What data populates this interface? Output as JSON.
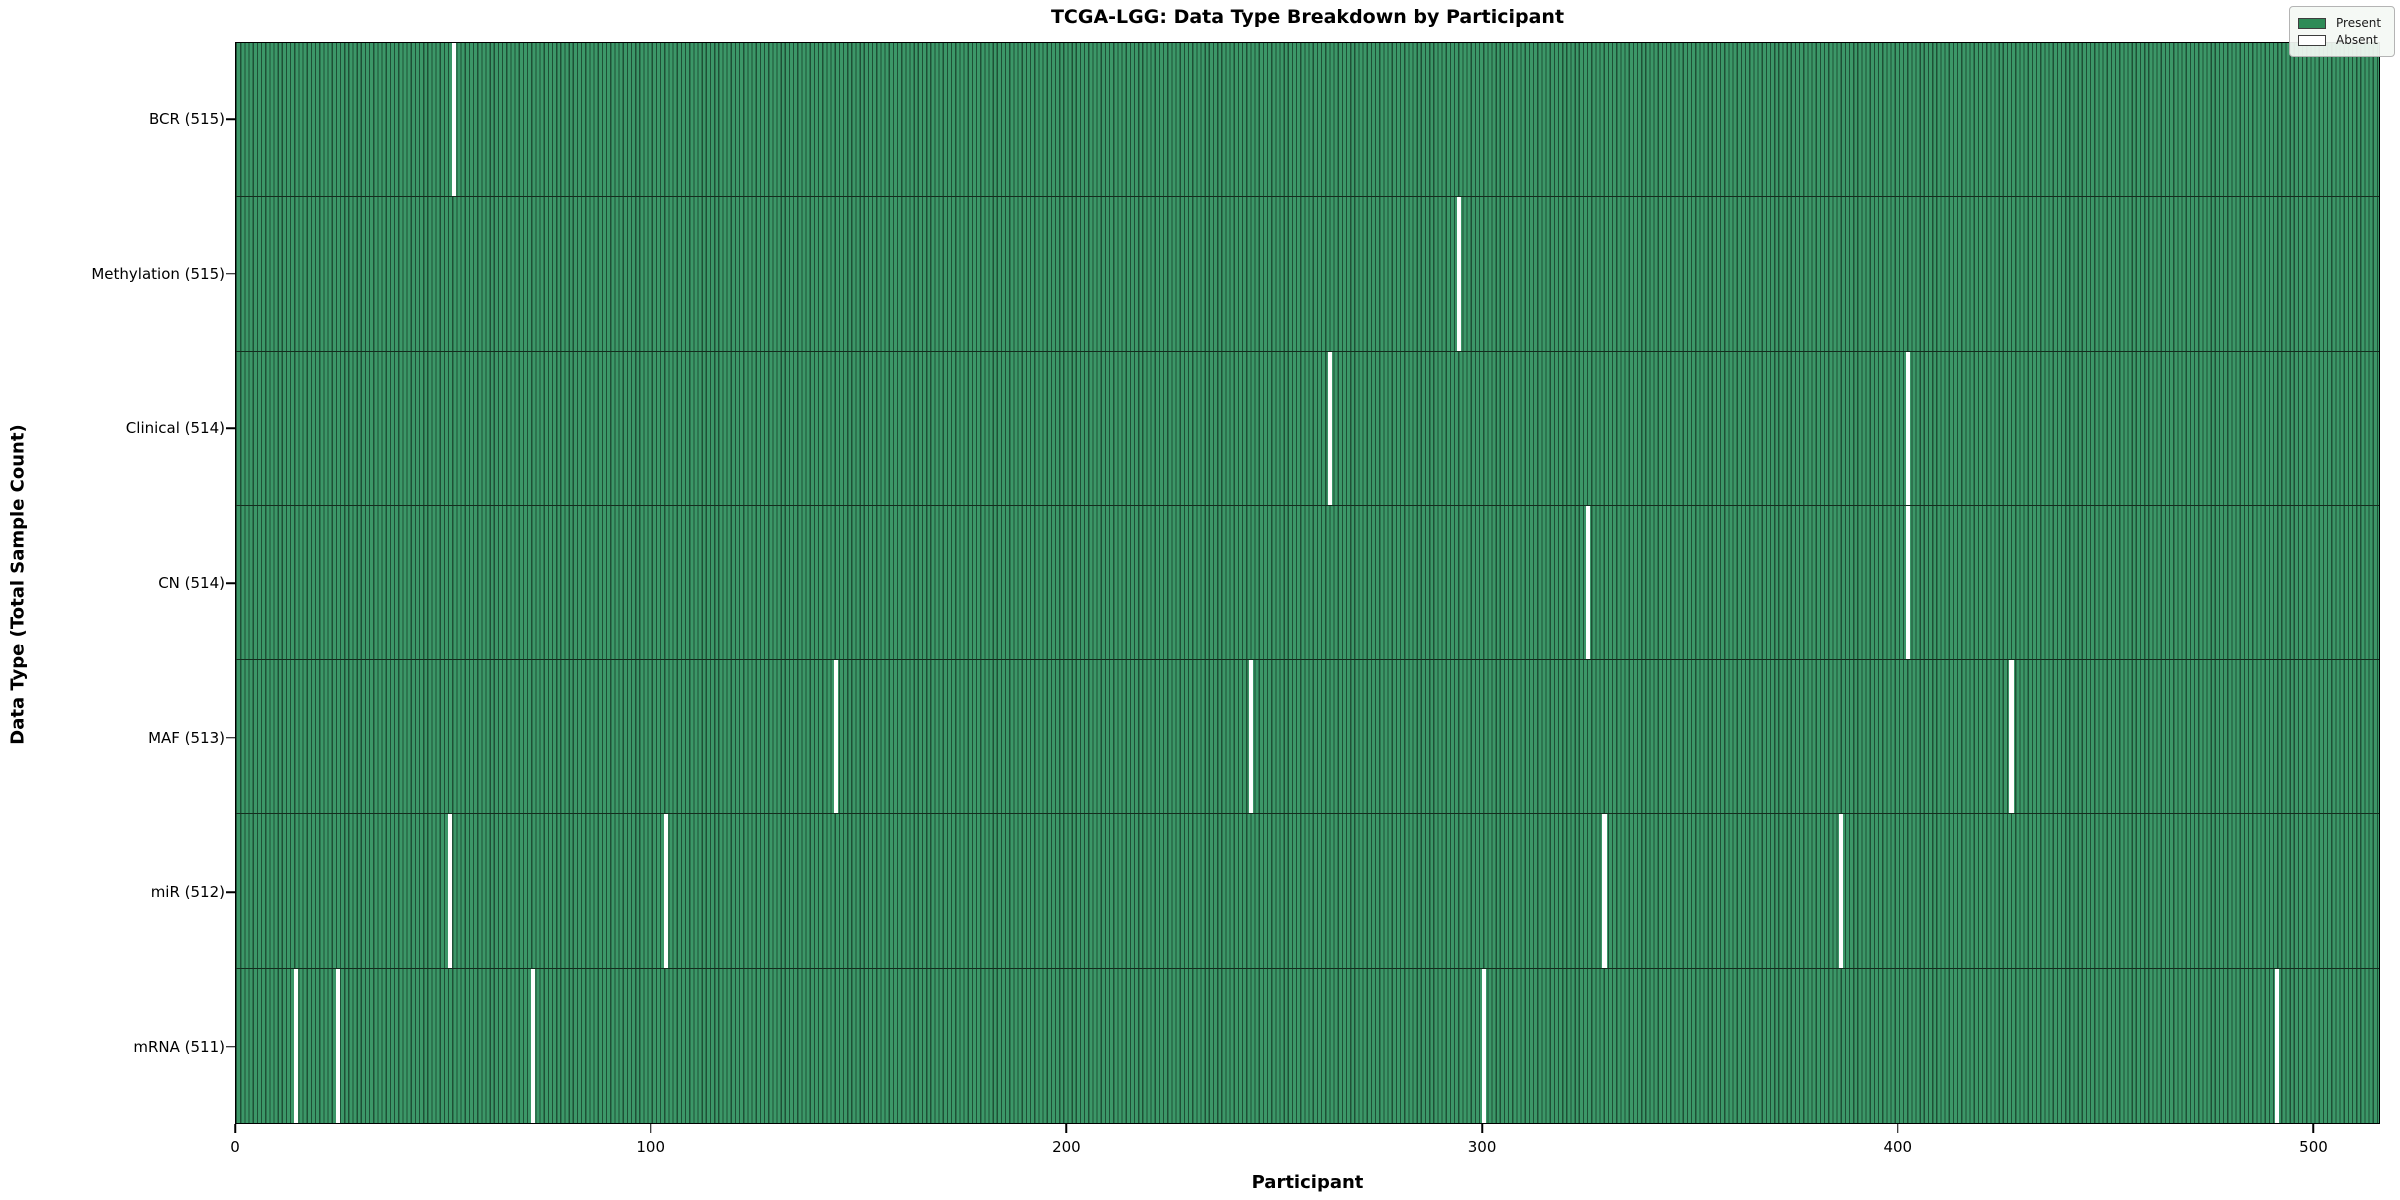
{
  "figure": {
    "title": "TCGA-LGG: Data Type Breakdown by Participant",
    "xlabel": "Participant",
    "ylabel": "Data Type (Total Sample Count)"
  },
  "chart_data": {
    "type": "heatmap",
    "title": "TCGA-LGG: Data Type Breakdown by Participant",
    "xlabel": "Participant",
    "ylabel": "Data Type (Total Sample Count)",
    "x_range": [
      0,
      516
    ],
    "n_participants": 516,
    "x_ticks": [
      0,
      100,
      200,
      300,
      400,
      500
    ],
    "grid": false,
    "legend_position": "upper right",
    "legend": [
      {
        "label": "Present",
        "color": "#2e8b57"
      },
      {
        "label": "Absent",
        "color": "#ffffff"
      }
    ],
    "rows": [
      {
        "label": "BCR (515)",
        "data_type": "BCR",
        "total_samples": 515,
        "absent_participants": [
          52
        ]
      },
      {
        "label": "Methylation (515)",
        "data_type": "Methylation",
        "total_samples": 515,
        "absent_participants": [
          294
        ]
      },
      {
        "label": "Clinical (514)",
        "data_type": "Clinical",
        "total_samples": 514,
        "absent_participants": [
          263,
          402
        ]
      },
      {
        "label": "CN (514)",
        "data_type": "CN",
        "total_samples": 514,
        "absent_participants": [
          325,
          402
        ]
      },
      {
        "label": "MAF (513)",
        "data_type": "MAF",
        "total_samples": 513,
        "absent_participants": [
          144,
          244,
          427
        ]
      },
      {
        "label": "miR (512)",
        "data_type": "miR",
        "total_samples": 512,
        "absent_participants": [
          51,
          103,
          329,
          386
        ]
      },
      {
        "label": "mRNA (511)",
        "data_type": "mRNA",
        "total_samples": 511,
        "absent_participants": [
          14,
          24,
          71,
          300,
          491
        ]
      }
    ],
    "colors": {
      "present_fill": "#3c9768",
      "bar_edge": "#1e5036",
      "absent_fill": "#ffffff",
      "legend_present_swatch": "#2e8b57"
    }
  }
}
